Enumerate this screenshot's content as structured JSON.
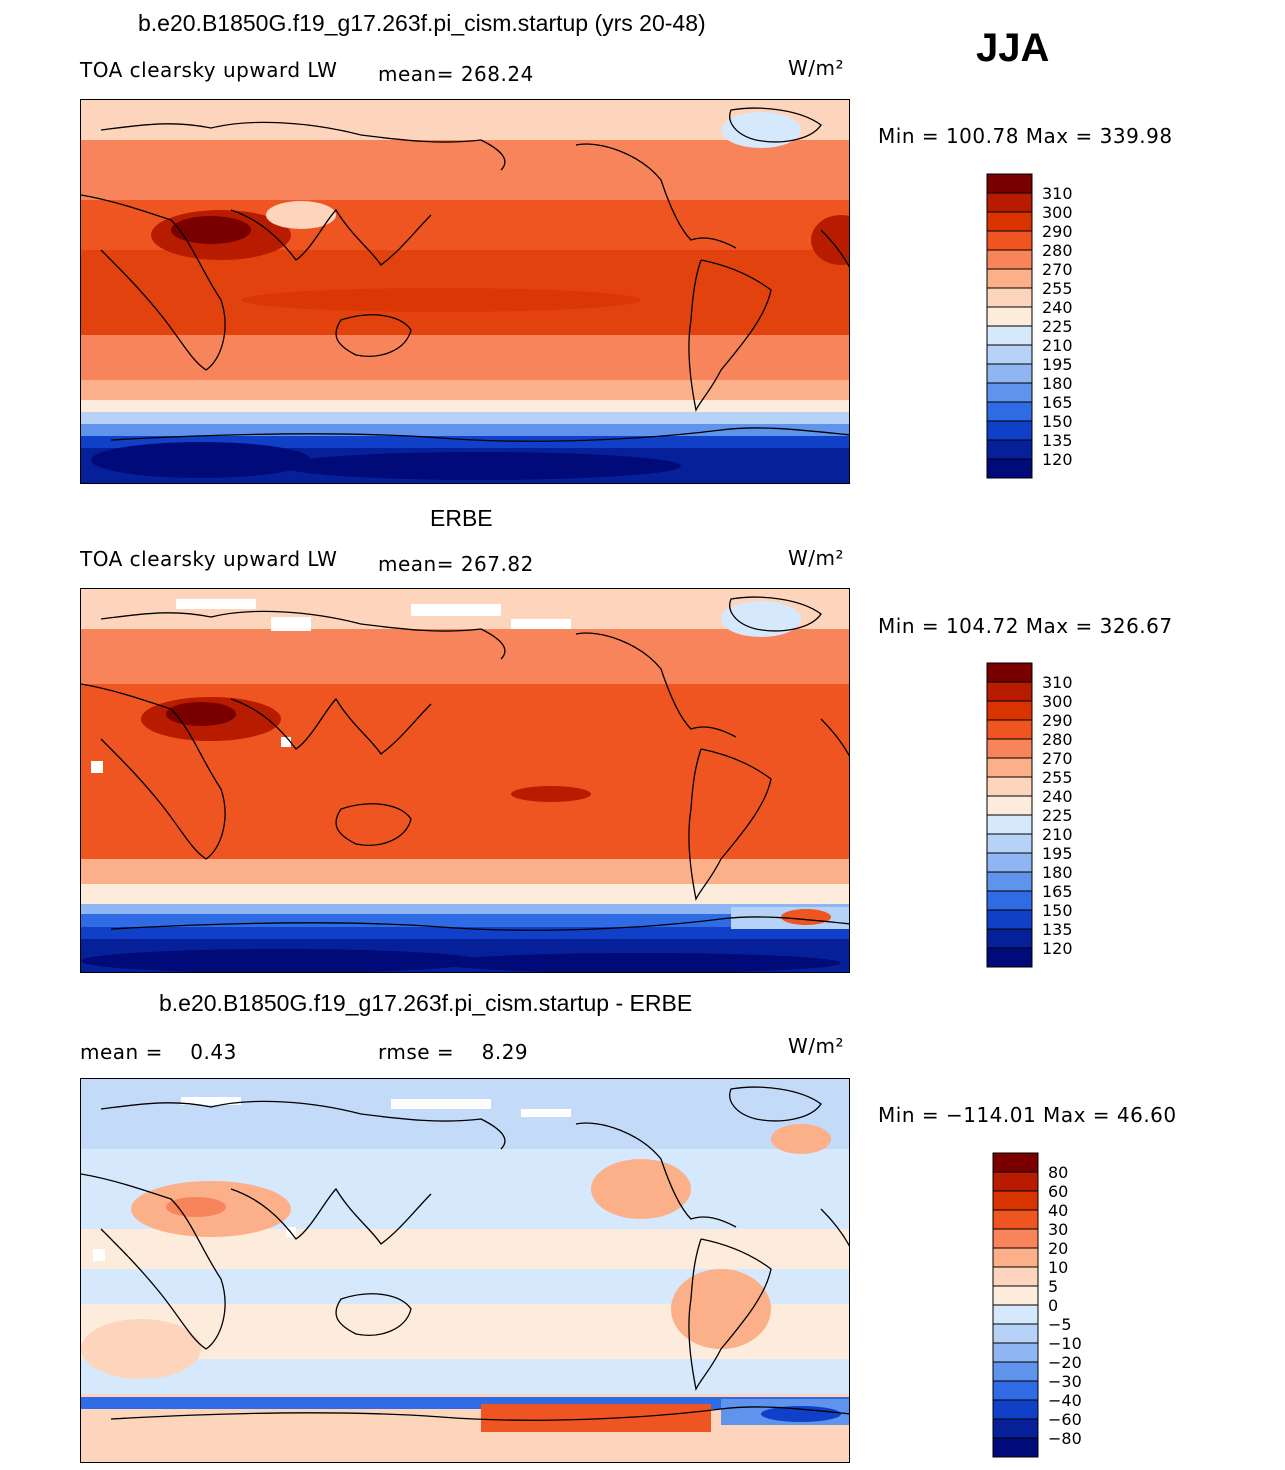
{
  "season": "JJA",
  "panels": [
    {
      "id": "model",
      "title": "b.e20.B1850G.f19_g17.263f.pi_cism.startup (yrs 20-48)",
      "variable": "TOA clearsky upward LW",
      "mean_label": "mean= 268.24",
      "units": "W/m²",
      "minmax": "Min = 100.78 Max = 339.98",
      "colorbar_labels": [
        "310",
        "300",
        "290",
        "280",
        "270",
        "255",
        "240",
        "225",
        "210",
        "195",
        "180",
        "165",
        "150",
        "135",
        "120"
      ],
      "colors": [
        "#7a0000",
        "#b81c00",
        "#d93300",
        "#ee5520",
        "#f7845a",
        "#fbb08a",
        "#fdd5bd",
        "#fdebdc",
        "#d6e8fb",
        "#b6d2f7",
        "#8fb6f2",
        "#5f93ec",
        "#2f6be4",
        "#1140c8",
        "#06209a",
        "#000a78"
      ]
    },
    {
      "id": "obs",
      "title": "ERBE",
      "variable": "TOA clearsky upward LW",
      "mean_label": "mean= 267.82",
      "units": "W/m²",
      "minmax": "Min = 104.72 Max = 326.67",
      "colorbar_labels": [
        "310",
        "300",
        "290",
        "280",
        "270",
        "255",
        "240",
        "225",
        "210",
        "195",
        "180",
        "165",
        "150",
        "135",
        "120"
      ],
      "colors": [
        "#7a0000",
        "#b81c00",
        "#d93300",
        "#ee5520",
        "#f7845a",
        "#fbb08a",
        "#fdd5bd",
        "#fdebdc",
        "#d6e8fb",
        "#b6d2f7",
        "#8fb6f2",
        "#5f93ec",
        "#2f6be4",
        "#1140c8",
        "#06209a",
        "#000a78"
      ]
    },
    {
      "id": "diff",
      "title": "b.e20.B1850G.f19_g17.263f.pi_cism.startup - ERBE",
      "mean_label": "mean =    0.43",
      "rmse_label": "rmse =    8.29",
      "units": "W/m²",
      "minmax": "Min = −114.01 Max =   46.60",
      "colorbar_labels": [
        "80",
        "60",
        "40",
        "30",
        "20",
        "10",
        "5",
        "0",
        "−5",
        "−10",
        "−20",
        "−30",
        "−40",
        "−60",
        "−80"
      ],
      "colors": [
        "#7a0000",
        "#b81c00",
        "#d93300",
        "#ee5520",
        "#f7845a",
        "#fbb08a",
        "#fdd5bd",
        "#fdebdc",
        "#d6e8fb",
        "#b6d2f7",
        "#8fb6f2",
        "#5f93ec",
        "#2f6be4",
        "#1140c8",
        "#06209a",
        "#000a78"
      ]
    }
  ]
}
